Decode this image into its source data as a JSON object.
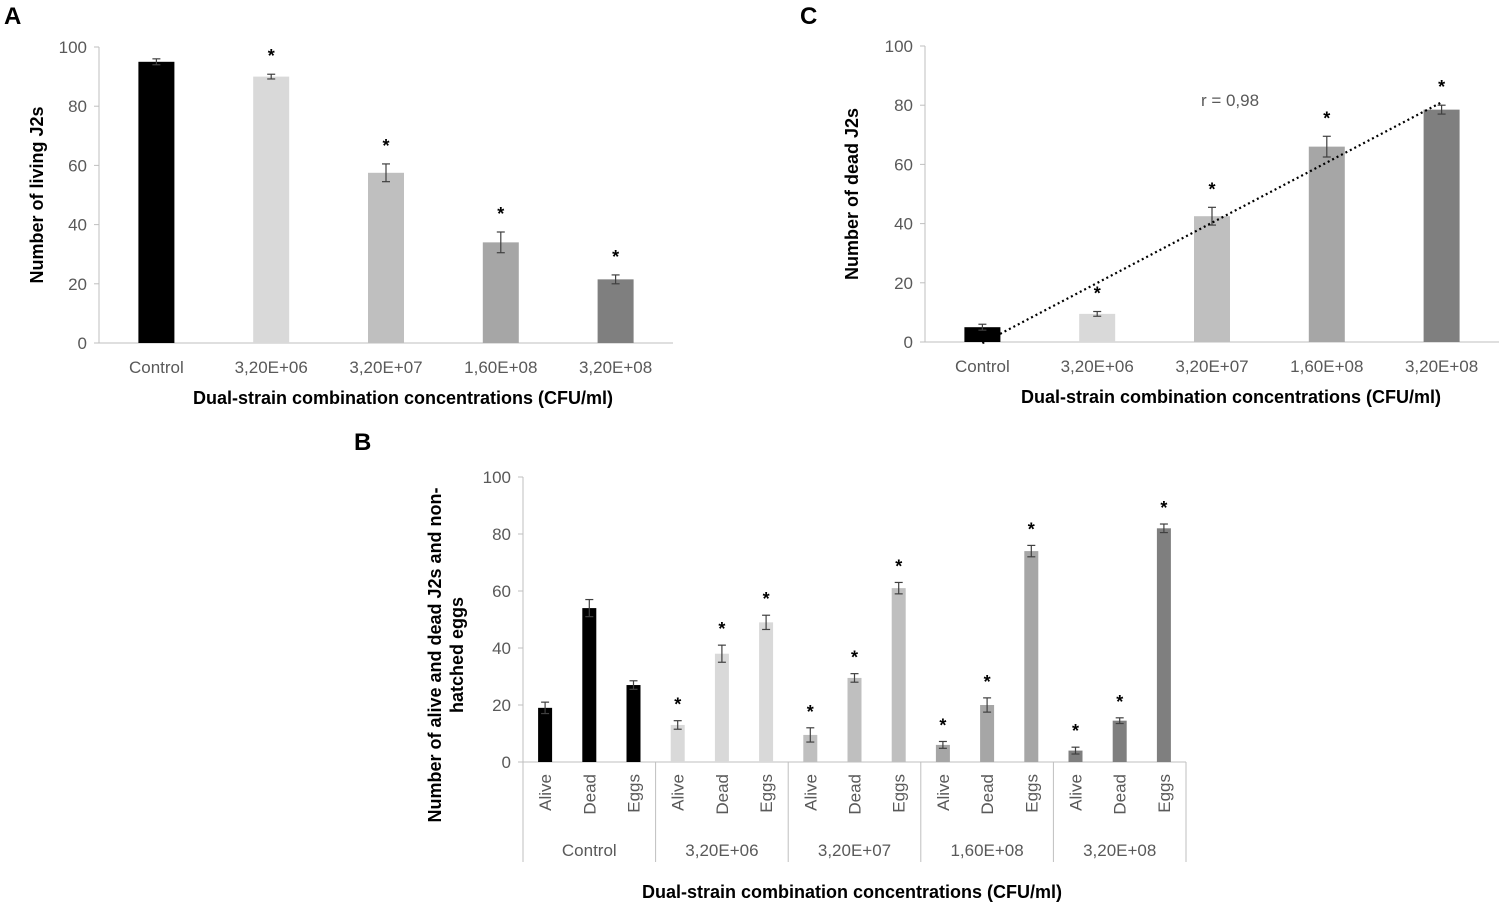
{
  "chart_data": [
    {
      "panel": "A",
      "type": "bar",
      "title": "",
      "xlabel": "Dual-strain combination concentrations (CFU/ml)",
      "ylabel": "Number of living J2s",
      "ylim": [
        0,
        100
      ],
      "yticks": [
        "0",
        "20",
        "40",
        "60",
        "80",
        "100"
      ],
      "categories": [
        "Control",
        "3,20E+06",
        "3,20E+07",
        "1,60E+08",
        "3,20E+08"
      ],
      "values": [
        95,
        90,
        57.5,
        34,
        21.5
      ],
      "errors": [
        1,
        0.8,
        3,
        3.5,
        1.5
      ],
      "significance": [
        "",
        "*",
        "*",
        "*",
        "*"
      ],
      "colors": [
        "#000000",
        "#d9d9d9",
        "#bfbfbf",
        "#a6a6a6",
        "#7f7f7f"
      ],
      "grid": false
    },
    {
      "panel": "C",
      "type": "bar",
      "title": "",
      "xlabel": "Dual-strain combination concentrations (CFU/ml)",
      "ylabel": "Number of dead J2s",
      "ylim": [
        0,
        100
      ],
      "yticks": [
        "0",
        "20",
        "40",
        "60",
        "80",
        "100"
      ],
      "categories": [
        "Control",
        "3,20E+06",
        "3,20E+07",
        "1,60E+08",
        "3,20E+08"
      ],
      "values": [
        5,
        9.5,
        42.5,
        66,
        78.5
      ],
      "errors": [
        1,
        0.8,
        3,
        3.5,
        1.5
      ],
      "significance": [
        "",
        "*",
        "*",
        "*",
        "*"
      ],
      "colors": [
        "#000000",
        "#d9d9d9",
        "#bfbfbf",
        "#a6a6a6",
        "#7f7f7f"
      ],
      "trendline": {
        "type": "linear",
        "style": "dotted",
        "label": "r = 0,98"
      },
      "grid": false
    },
    {
      "panel": "B",
      "type": "bar",
      "title": "",
      "xlabel": "Dual-strain combination concentrations (CFU/ml)",
      "ylabel_lines": [
        "Number of alive and dead J2s and non-",
        "hatched eggs"
      ],
      "ylim": [
        0,
        100
      ],
      "yticks": [
        "0",
        "20",
        "40",
        "60",
        "80",
        "100"
      ],
      "categories": [
        "Control",
        "3,20E+06",
        "3,20E+07",
        "1,60E+08",
        "3,20E+08"
      ],
      "subcategories": [
        "Alive",
        "Dead",
        "Eggs"
      ],
      "groups": [
        {
          "values": [
            19,
            54,
            27
          ],
          "errors": [
            2,
            3,
            1.5
          ],
          "significance": [
            "",
            "",
            ""
          ],
          "color": "#000000"
        },
        {
          "values": [
            13,
            38,
            49
          ],
          "errors": [
            1.5,
            3,
            2.5
          ],
          "significance": [
            "*",
            "*",
            "*"
          ],
          "color": "#d9d9d9"
        },
        {
          "values": [
            9.5,
            29.5,
            61
          ],
          "errors": [
            2.5,
            1.5,
            2
          ],
          "significance": [
            "*",
            "*",
            "*"
          ],
          "color": "#bfbfbf"
        },
        {
          "values": [
            6,
            20,
            74
          ],
          "errors": [
            1.2,
            2.5,
            2
          ],
          "significance": [
            "*",
            "*",
            "*"
          ],
          "color": "#a6a6a6"
        },
        {
          "values": [
            4,
            14.5,
            82
          ],
          "errors": [
            1.2,
            1,
            1.5
          ],
          "significance": [
            "*",
            "*",
            "*"
          ],
          "color": "#7f7f7f"
        }
      ],
      "grid": false
    }
  ]
}
